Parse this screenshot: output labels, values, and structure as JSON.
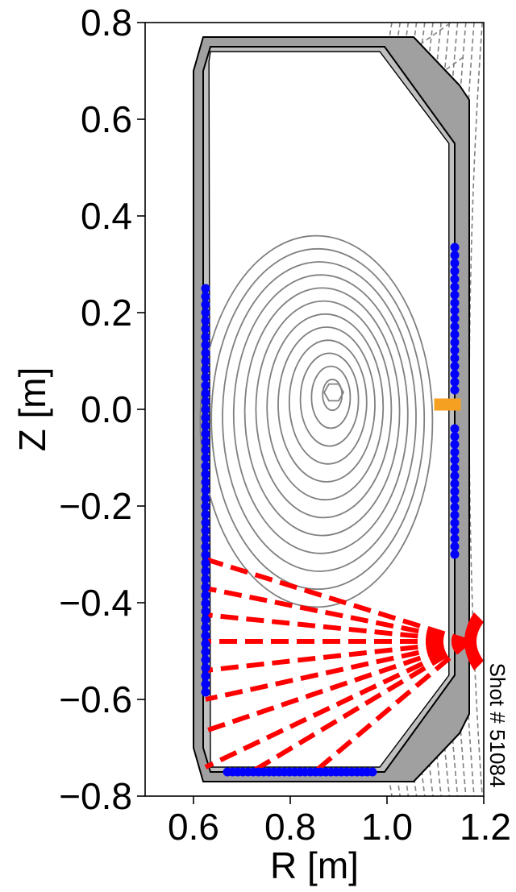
{
  "chart_data": {
    "type": "scatter",
    "title": "",
    "xlabel": "R [m]",
    "ylabel": "Z [m]",
    "xlim": [
      0.5,
      1.2
    ],
    "ylim": [
      -0.8,
      0.8
    ],
    "x_ticks": [
      "0.6",
      "0.8",
      "1.0",
      "1.2"
    ],
    "y_ticks": [
      "0.8",
      "0.6",
      "0.4",
      "0.2",
      "0.0",
      "−0.2",
      "−0.4",
      "−0.6",
      "−0.8"
    ],
    "annotation": "Shot # 51084",
    "grid": false,
    "colors": {
      "vessel_fill": "#a0a0a0",
      "vessel_shade": "#c0c0c0",
      "contour": "#808080",
      "probe": "#0000ff",
      "chord": "#ff0000",
      "port": "#f5a020"
    },
    "vessel_outline": {
      "r": [
        0.6,
        0.62,
        0.8,
        0.98,
        1.055,
        1.15,
        1.17,
        1.17,
        1.15,
        1.055,
        0.98,
        0.8,
        0.62,
        0.6
      ],
      "z": [
        0.7,
        0.77,
        0.77,
        0.77,
        0.77,
        0.67,
        0.64,
        -0.63,
        -0.67,
        -0.77,
        -0.77,
        -0.77,
        -0.77,
        -0.7
      ]
    },
    "inner_wall": {
      "r": [
        0.62,
        0.635,
        0.8,
        0.995,
        1.14,
        1.14,
        1.14,
        1.14,
        0.995,
        0.8,
        0.635,
        0.62
      ],
      "z": [
        0.7,
        0.75,
        0.75,
        0.75,
        0.55,
        0.2,
        -0.2,
        -0.55,
        -0.75,
        -0.75,
        -0.75,
        -0.7
      ]
    },
    "magnetic_axis": {
      "r": 0.89,
      "z": 0.035
    },
    "probes": {
      "inner": {
        "r": 0.625,
        "z_from": -0.585,
        "z_to": 0.25,
        "count": 51
      },
      "outer_upper": {
        "r": 1.14,
        "z_from": 0.04,
        "z_to": 0.335,
        "count": 19
      },
      "outer_lower": {
        "r": 1.14,
        "z_from": -0.3,
        "z_to": -0.04,
        "count": 17
      },
      "bottom": {
        "z": -0.75,
        "r_from": 0.67,
        "r_to": 0.97,
        "count": 29
      }
    },
    "port": {
      "r": 1.125,
      "z": 0.01
    },
    "chords": {
      "origin": {
        "r": 1.17,
        "z": -0.48
      },
      "ends": [
        {
          "r": 0.625,
          "z": -0.31
        },
        {
          "r": 0.625,
          "z": -0.37
        },
        {
          "r": 0.625,
          "z": -0.425
        },
        {
          "r": 0.625,
          "z": -0.48
        },
        {
          "r": 0.625,
          "z": -0.54
        },
        {
          "r": 0.625,
          "z": -0.6
        },
        {
          "r": 0.625,
          "z": -0.665
        },
        {
          "r": 0.625,
          "z": -0.74
        },
        {
          "r": 0.72,
          "z": -0.75
        },
        {
          "r": 0.85,
          "z": -0.75
        }
      ]
    }
  }
}
